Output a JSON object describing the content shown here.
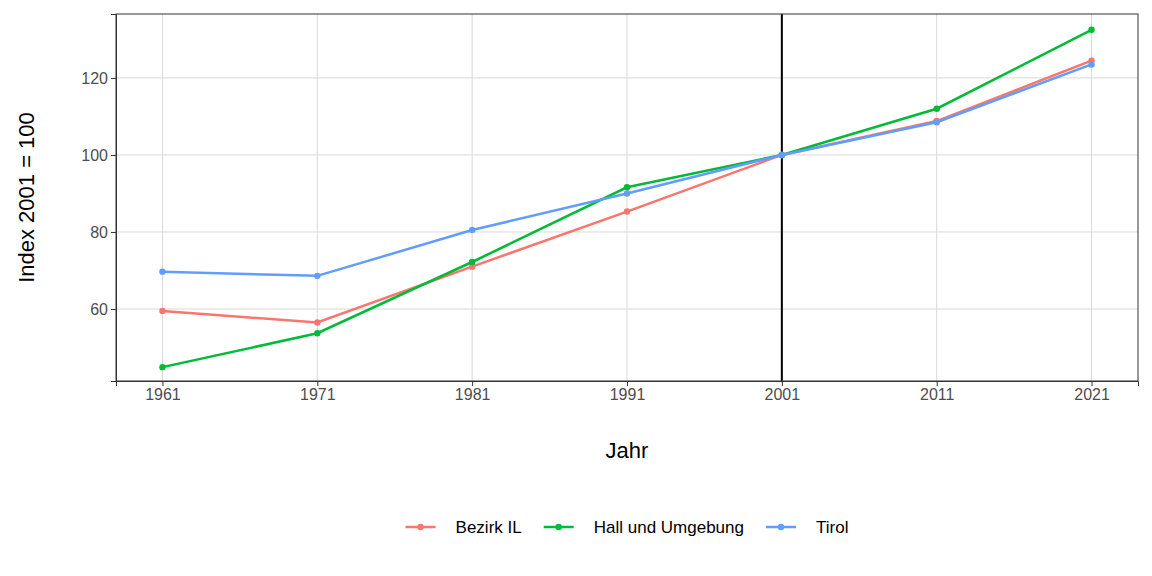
{
  "chart_data": {
    "type": "line",
    "x_label": "Jahr",
    "y_label": "Index 2001 = 100",
    "x": [
      1961,
      1971,
      1981,
      1991,
      2001,
      2011,
      2021
    ],
    "series": [
      {
        "name": "Bezirk IL",
        "color": "#F8766D",
        "values": [
          59.5,
          56.5,
          71.0,
          85.3,
          100,
          108.8,
          124.5
        ]
      },
      {
        "name": "Hall und Umgebung",
        "color": "#00BA38",
        "values": [
          44.9,
          53.7,
          72.2,
          91.6,
          100,
          112.0,
          132.5
        ]
      },
      {
        "name": "Tirol",
        "color": "#619CFF",
        "values": [
          69.7,
          68.6,
          80.5,
          90.0,
          100,
          108.5,
          123.5
        ]
      }
    ],
    "vline": 2001,
    "xlim": [
      1958,
      2024
    ],
    "xticks": [
      1961,
      1971,
      1981,
      1991,
      2001,
      2011,
      2021
    ],
    "ylim": [
      41.3,
      136.6
    ],
    "yticks": [
      60,
      80,
      100,
      120
    ],
    "grid": true,
    "legend": "bottom",
    "marker": "circle"
  }
}
